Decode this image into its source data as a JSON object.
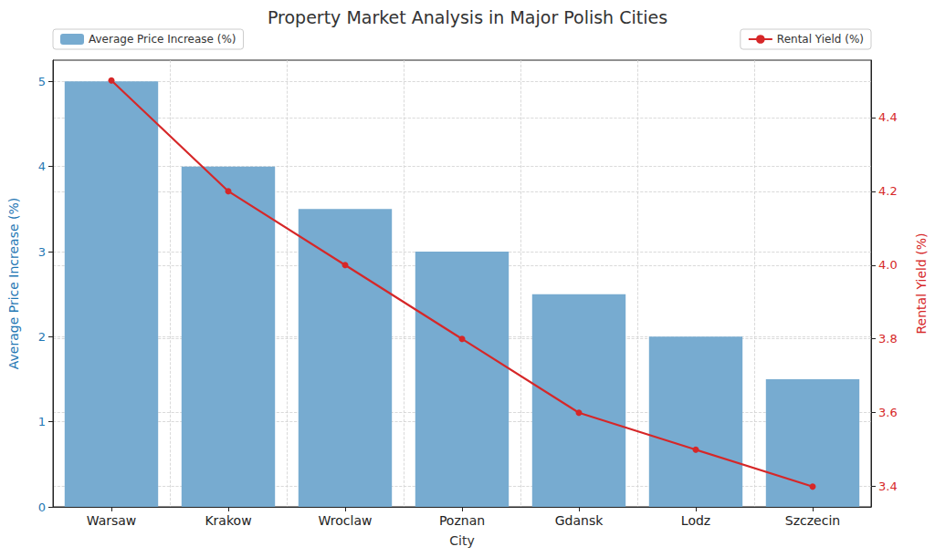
{
  "chart_data": {
    "type": "bar",
    "title": "Property Market Analysis in Major Polish Cities",
    "x_label": "City",
    "y_label": "Average Price Increase (%)",
    "y2_label": "Rental Yield (%)",
    "categories": [
      "Warsaw",
      "Krakow",
      "Wroclaw",
      "Poznan",
      "Gdansk",
      "Lodz",
      "Szczecin"
    ],
    "series": [
      {
        "name": "Average Price Increase (%)",
        "type": "bar",
        "color": "#77abd0",
        "values": [
          5,
          4,
          3.5,
          3,
          2.5,
          2,
          1.5
        ]
      },
      {
        "name": "Rental Yield (%)",
        "type": "line",
        "color": "#d62728",
        "marker": "circle",
        "line_style": "solid",
        "axis": "y2",
        "values": [
          4.5,
          4.2,
          4.0,
          3.8,
          3.6,
          3.5,
          3.4
        ]
      }
    ],
    "ylim": [
      0,
      5.25
    ],
    "yticks": [
      0,
      1,
      2,
      3,
      4,
      5
    ],
    "y2lim": [
      3.345,
      4.555
    ],
    "y2ticks": [
      3.4,
      3.6,
      3.8,
      {
        "value": 4,
        "label": "4.0"
      },
      4.2,
      4.4
    ],
    "grid": true,
    "legend": "upper left"
  }
}
